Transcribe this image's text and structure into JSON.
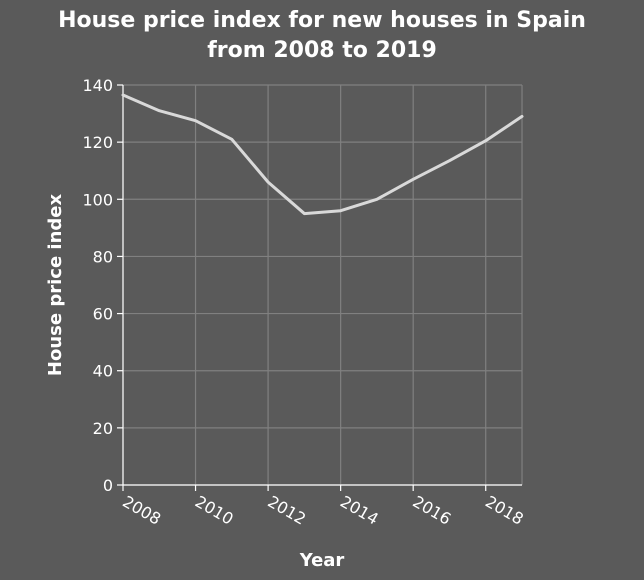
{
  "chart_data": {
    "type": "line",
    "title_lines": [
      "House price index for new houses in Spain",
      "from 2008 to 2019"
    ],
    "xlabel": "Year",
    "ylabel": "House price index",
    "x": [
      2008,
      2009,
      2010,
      2011,
      2012,
      2013,
      2014,
      2015,
      2016,
      2017,
      2018,
      2019
    ],
    "series": [
      {
        "values": [
          136.5,
          131,
          127.5,
          121,
          106,
          95,
          96,
          100,
          107,
          113.5,
          120.5,
          129
        ]
      }
    ],
    "xlim": [
      2008,
      2019
    ],
    "ylim": [
      0,
      140
    ],
    "xticks": [
      "2008",
      "2010",
      "2012",
      "2014",
      "2016",
      "2018"
    ],
    "yticks": [
      "0",
      "20",
      "40",
      "60",
      "80",
      "100",
      "120",
      "140"
    ],
    "grid": true,
    "colors": {
      "background": "#5a5a5a",
      "grid": "#808080",
      "line": "#d9d9d9",
      "text": "#ffffff"
    }
  }
}
